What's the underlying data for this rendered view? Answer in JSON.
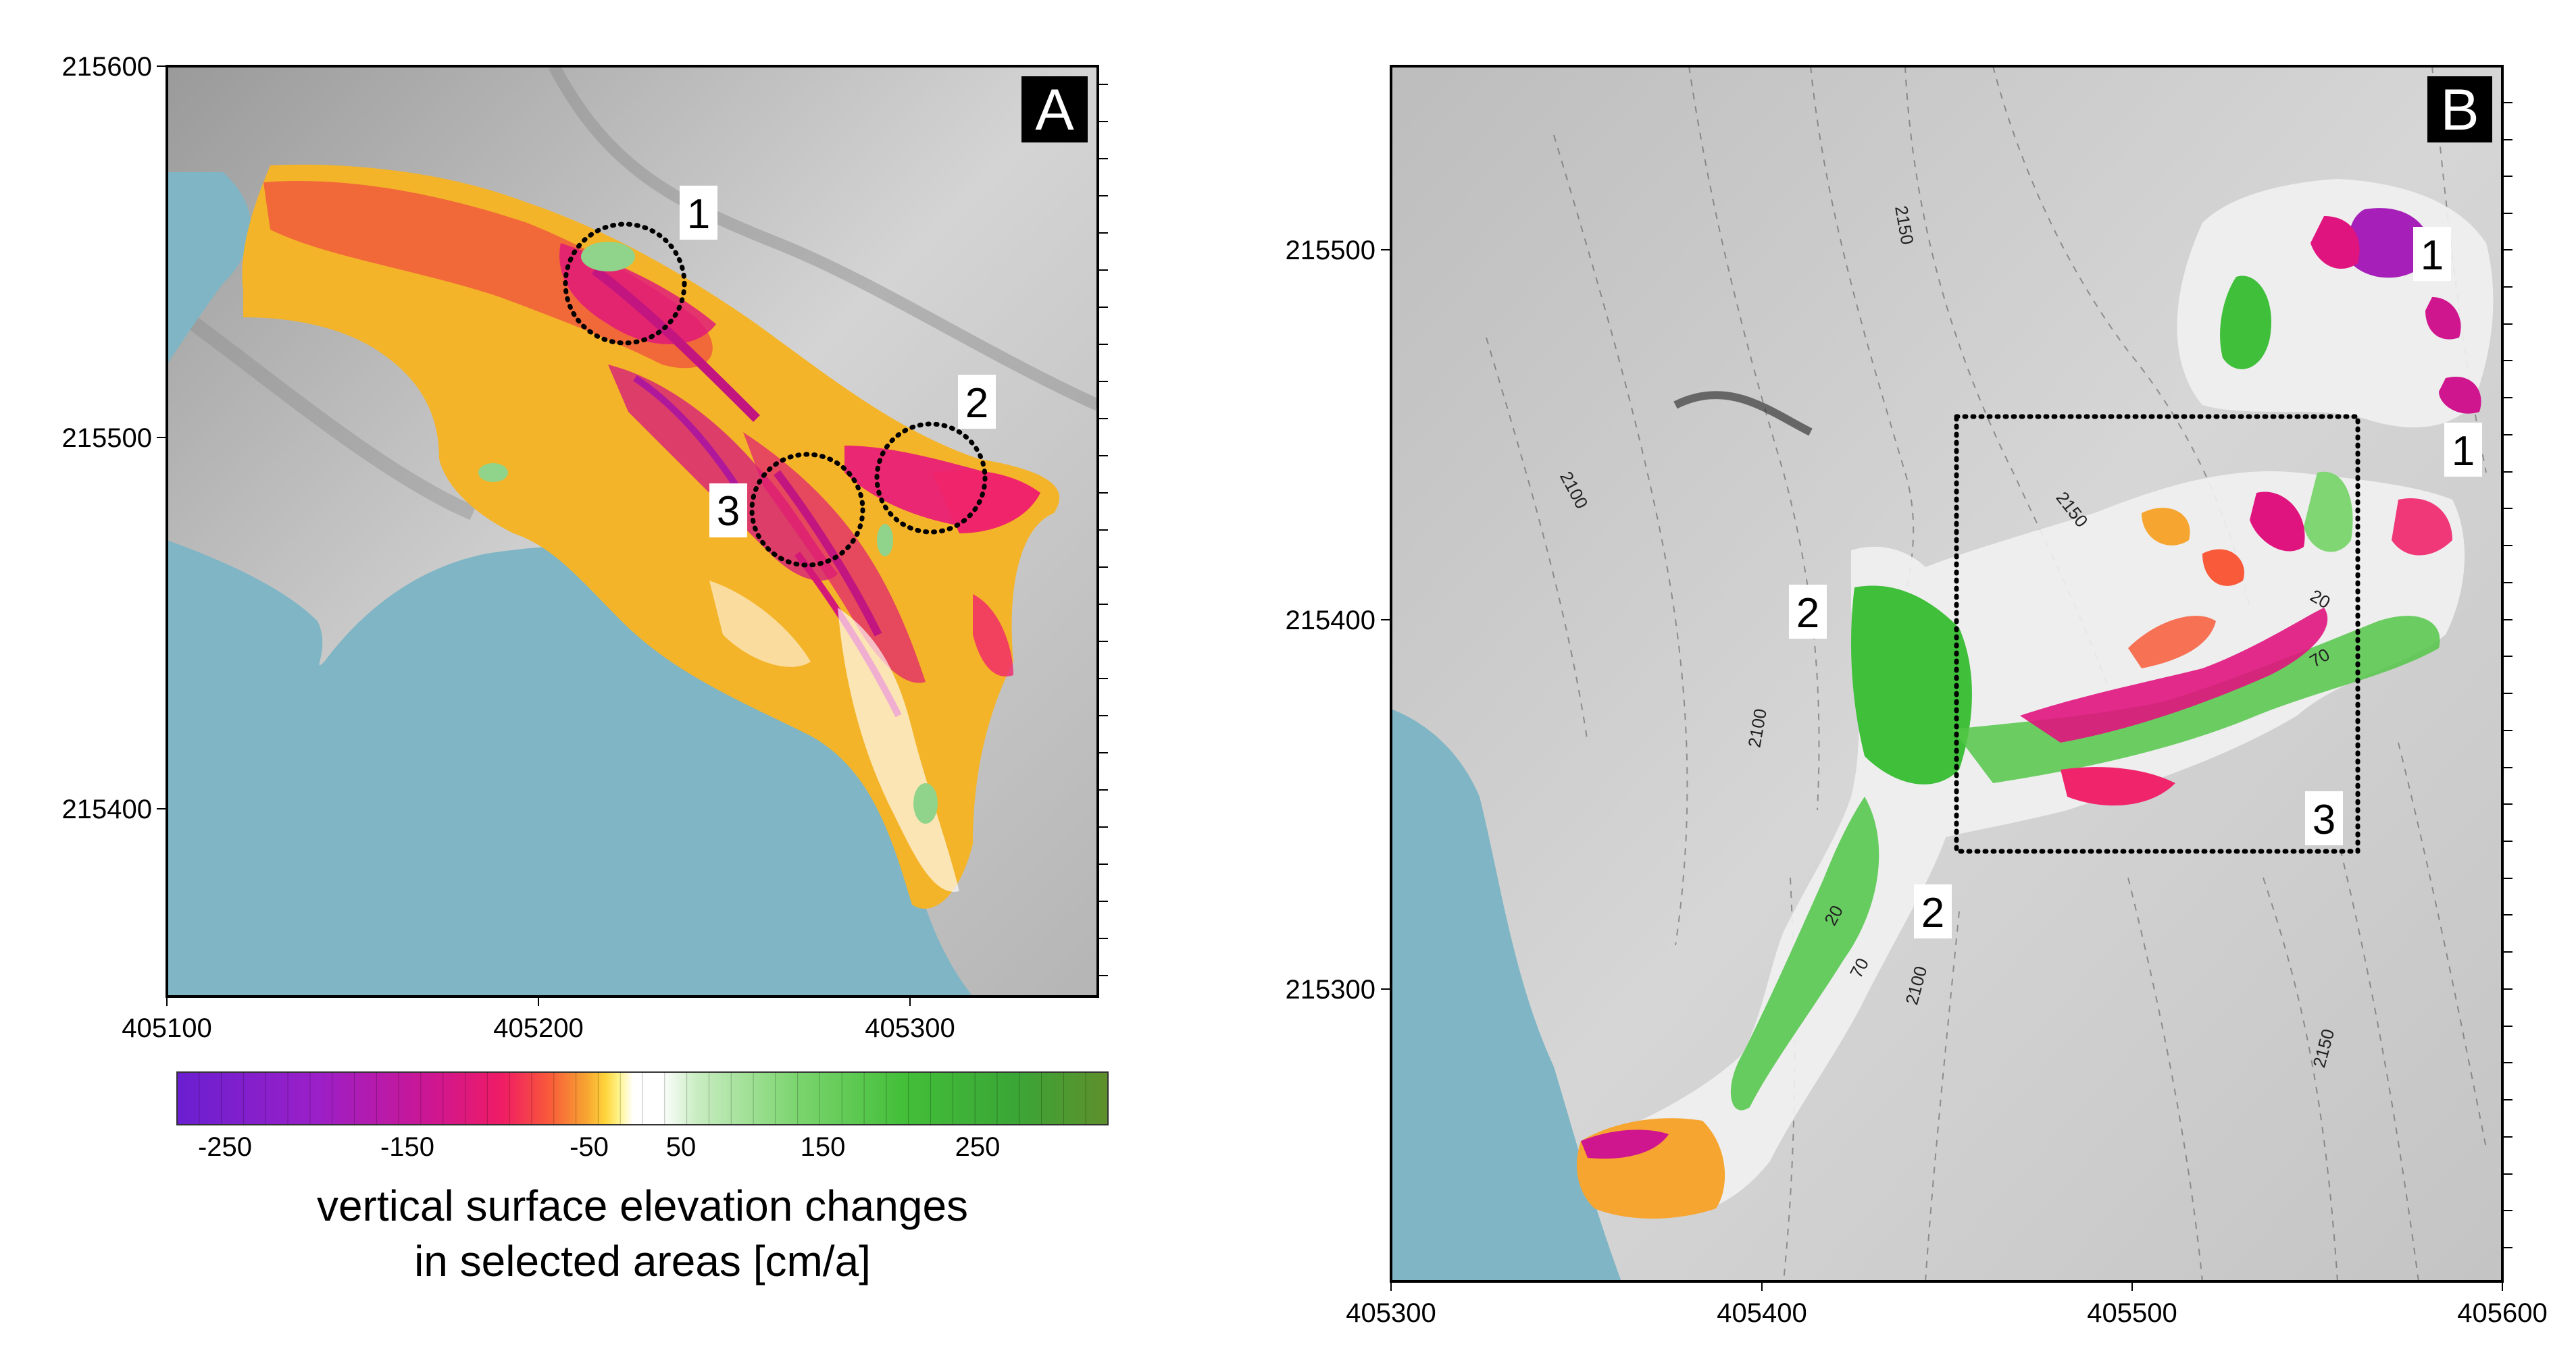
{
  "panel_a": {
    "label": "A",
    "y_ticks": [
      "215600",
      "215500",
      "215400"
    ],
    "x_ticks": [
      "405100",
      "405200",
      "405300"
    ],
    "markers": [
      "1",
      "2",
      "3"
    ]
  },
  "panel_b": {
    "label": "B",
    "y_ticks": [
      "215500",
      "215400",
      "215300"
    ],
    "x_ticks": [
      "405300",
      "405400",
      "405500",
      "405600"
    ],
    "markers": [
      "1",
      "1",
      "2",
      "2",
      "3"
    ],
    "contour_labels": [
      "2150",
      "2100",
      "2150",
      "2100",
      "2100",
      "2150",
      "20",
      "70",
      "20",
      "70"
    ]
  },
  "colorbar": {
    "tick_labels": [
      "-250",
      "-150",
      "-50",
      "50",
      "150",
      "250"
    ],
    "caption_line1": "vertical surface elevation changes",
    "caption_line2": "in selected areas [cm/a]"
  },
  "colors": {
    "water": "#7fb5c4",
    "terrain": "#c7c7c7",
    "negative_high": "#7b22d6",
    "negative_mid": "#e6147a",
    "negative_low": "#f5a623",
    "neutral": "#ffffff",
    "positive": "#3fbf3a",
    "positive_high": "#5c8f2e"
  }
}
